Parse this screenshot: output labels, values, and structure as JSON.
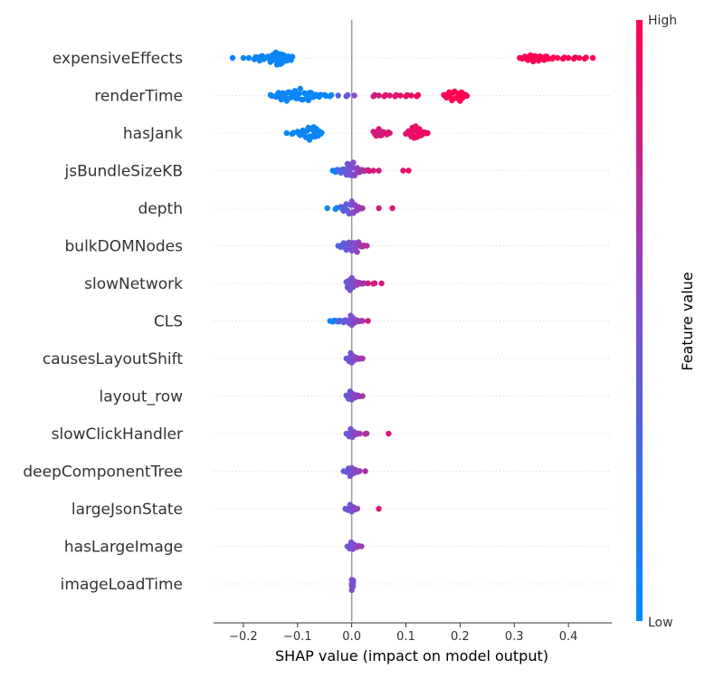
{
  "chart_data": {
    "type": "scatter",
    "subtype": "shap-beeswarm",
    "title": "",
    "xlabel": "SHAP value (impact on model output)",
    "ylabel": "",
    "xlim": [
      -0.255,
      0.48
    ],
    "xticks": [
      -0.2,
      -0.1,
      0.0,
      0.1,
      0.2,
      0.3,
      0.4
    ],
    "xtick_labels": [
      "−0.2",
      "−0.1",
      "0.0",
      "0.1",
      "0.2",
      "0.3",
      "0.4"
    ],
    "zero_line": 0.0,
    "grid": "dotted horizontal guide per feature",
    "colorbar": {
      "title": "Feature value",
      "high_label": "High",
      "low_label": "Low",
      "low_color": "#008bfb",
      "mid_color": "#7b4fd0",
      "high_color": "#ff0052"
    },
    "features": [
      {
        "name": "expensiveEffects",
        "points": [
          [
            -0.22,
            0
          ],
          [
            -0.2,
            0
          ],
          [
            -0.19,
            0
          ],
          [
            -0.18,
            0.1
          ],
          [
            -0.175,
            0.05
          ],
          [
            -0.17,
            0.2
          ],
          [
            -0.165,
            0.15
          ],
          [
            -0.16,
            0
          ],
          [
            -0.155,
            0.1
          ],
          [
            -0.15,
            0.3
          ],
          [
            -0.145,
            0.25
          ],
          [
            -0.14,
            0
          ],
          [
            -0.14,
            0.4
          ],
          [
            -0.138,
            0.5
          ],
          [
            -0.135,
            0.2
          ],
          [
            -0.132,
            0.45
          ],
          [
            -0.13,
            0.1
          ],
          [
            -0.128,
            0.35
          ],
          [
            -0.125,
            0
          ],
          [
            -0.12,
            0.2
          ],
          [
            -0.115,
            0.05
          ],
          [
            -0.112,
            0.15
          ],
          [
            0.31,
            0
          ],
          [
            0.315,
            0.05
          ],
          [
            0.32,
            0.1
          ],
          [
            0.325,
            0.15
          ],
          [
            0.33,
            0.2
          ],
          [
            0.335,
            0.25
          ],
          [
            0.34,
            0.1
          ],
          [
            0.345,
            0.2
          ],
          [
            0.35,
            0.05
          ],
          [
            0.355,
            0.15
          ],
          [
            0.36,
            0.1
          ],
          [
            0.37,
            0.05
          ],
          [
            0.38,
            0
          ],
          [
            0.39,
            0.05
          ],
          [
            0.4,
            0
          ],
          [
            0.41,
            0.05
          ],
          [
            0.42,
            0
          ],
          [
            0.43,
            0.05
          ],
          [
            0.445,
            0
          ]
        ]
      },
      {
        "name": "renderTime",
        "points": [
          [
            -0.15,
            0.05
          ],
          [
            -0.14,
            0.1
          ],
          [
            -0.135,
            0.2
          ],
          [
            -0.13,
            0.3
          ],
          [
            -0.125,
            0.15
          ],
          [
            -0.12,
            0.4
          ],
          [
            -0.115,
            0.25
          ],
          [
            -0.11,
            0.1
          ],
          [
            -0.105,
            0.35
          ],
          [
            -0.1,
            0.2
          ],
          [
            -0.095,
            0.5
          ],
          [
            -0.09,
            0.3
          ],
          [
            -0.085,
            0.15
          ],
          [
            -0.08,
            0.35
          ],
          [
            -0.075,
            0.2
          ],
          [
            -0.07,
            0.1
          ],
          [
            -0.065,
            0.05
          ],
          [
            -0.06,
            0.1
          ],
          [
            -0.05,
            0.05
          ],
          [
            -0.04,
            0.05
          ],
          [
            -0.025,
            0
          ],
          [
            -0.01,
            0.05
          ],
          [
            0.005,
            0
          ],
          [
            0.04,
            0.05
          ],
          [
            0.05,
            0
          ],
          [
            0.06,
            0.05
          ],
          [
            0.07,
            0
          ],
          [
            0.08,
            0.05
          ],
          [
            0.09,
            0
          ],
          [
            0.1,
            0.05
          ],
          [
            0.11,
            0
          ],
          [
            0.12,
            0.05
          ],
          [
            0.17,
            0.05
          ],
          [
            0.175,
            0.15
          ],
          [
            0.18,
            0.25
          ],
          [
            0.185,
            0.35
          ],
          [
            0.19,
            0.3
          ],
          [
            0.195,
            0.2
          ],
          [
            0.2,
            0.1
          ],
          [
            0.205,
            0.15
          ],
          [
            0.21,
            0.05
          ],
          [
            0.2,
            0.4
          ]
        ]
      },
      {
        "name": "hasJank",
        "points": [
          [
            -0.12,
            0
          ],
          [
            -0.11,
            0.05
          ],
          [
            -0.1,
            0.1
          ],
          [
            -0.095,
            0.15
          ],
          [
            -0.09,
            0.2
          ],
          [
            -0.085,
            0.3
          ],
          [
            -0.08,
            0.4
          ],
          [
            -0.078,
            0.5
          ],
          [
            -0.075,
            0.35
          ],
          [
            -0.072,
            0.25
          ],
          [
            -0.07,
            0.45
          ],
          [
            -0.068,
            0.15
          ],
          [
            -0.065,
            0.3
          ],
          [
            -0.062,
            0.2
          ],
          [
            -0.06,
            0.1
          ],
          [
            -0.058,
            0.05
          ],
          [
            0.04,
            0.1
          ],
          [
            0.045,
            0.2
          ],
          [
            0.05,
            0.3
          ],
          [
            0.055,
            0.15
          ],
          [
            0.06,
            0.05
          ],
          [
            0.065,
            0.1
          ],
          [
            0.07,
            0
          ],
          [
            0.1,
            0.05
          ],
          [
            0.105,
            0.15
          ],
          [
            0.11,
            0.25
          ],
          [
            0.112,
            0.4
          ],
          [
            0.115,
            0.35
          ],
          [
            0.118,
            0.5
          ],
          [
            0.12,
            0.2
          ],
          [
            0.125,
            0.3
          ],
          [
            0.13,
            0.1
          ],
          [
            0.135,
            0.05
          ],
          [
            0.14,
            0
          ]
        ]
      },
      {
        "name": "jsBundleSizeKB",
        "points": [
          [
            -0.035,
            0
          ],
          [
            -0.03,
            0.1
          ],
          [
            -0.025,
            0.05
          ],
          [
            -0.02,
            0.15
          ],
          [
            -0.015,
            0.1
          ],
          [
            -0.01,
            0.3
          ],
          [
            -0.008,
            0.5
          ],
          [
            -0.005,
            0.2
          ],
          [
            -0.003,
            0.45
          ],
          [
            0,
            0.35
          ],
          [
            0.003,
            0.6
          ],
          [
            0.006,
            0.25
          ],
          [
            0.01,
            0.2
          ],
          [
            0.015,
            0.1
          ],
          [
            0.02,
            0.05
          ],
          [
            0.025,
            0
          ],
          [
            0.03,
            0.05
          ],
          [
            0.04,
            0
          ],
          [
            0.05,
            0
          ],
          [
            0.095,
            0
          ],
          [
            0.105,
            0
          ]
        ]
      },
      {
        "name": "depth",
        "points": [
          [
            -0.045,
            0
          ],
          [
            -0.03,
            0.05
          ],
          [
            -0.02,
            0.1
          ],
          [
            -0.015,
            0.2
          ],
          [
            -0.01,
            0.3
          ],
          [
            -0.005,
            0.4
          ],
          [
            0,
            0.5
          ],
          [
            0.003,
            0.35
          ],
          [
            0.006,
            0.25
          ],
          [
            0.01,
            0.15
          ],
          [
            0.015,
            0.05
          ],
          [
            0.02,
            0
          ],
          [
            0.05,
            0
          ],
          [
            0.075,
            0
          ]
        ]
      },
      {
        "name": "bulkDOMNodes",
        "points": [
          [
            -0.025,
            0
          ],
          [
            -0.02,
            0.1
          ],
          [
            -0.015,
            0.2
          ],
          [
            -0.01,
            0.3
          ],
          [
            -0.005,
            0.25
          ],
          [
            0,
            0.35
          ],
          [
            0.005,
            0.2
          ],
          [
            0.01,
            0.45
          ],
          [
            0.015,
            0.1
          ],
          [
            0.02,
            0.05
          ],
          [
            0.028,
            0
          ]
        ]
      },
      {
        "name": "slowNetwork",
        "points": [
          [
            -0.01,
            0.1
          ],
          [
            -0.008,
            0.3
          ],
          [
            -0.005,
            0.2
          ],
          [
            -0.003,
            0.5
          ],
          [
            0,
            0.4
          ],
          [
            0.003,
            0.25
          ],
          [
            0.006,
            0.15
          ],
          [
            0.01,
            0.1
          ],
          [
            0.015,
            0.05
          ],
          [
            0.02,
            0.02
          ],
          [
            0.03,
            0
          ],
          [
            0.04,
            0.02
          ],
          [
            0.055,
            0
          ]
        ]
      },
      {
        "name": "CLS",
        "points": [
          [
            -0.04,
            0
          ],
          [
            -0.035,
            0.05
          ],
          [
            -0.03,
            0.02
          ],
          [
            -0.025,
            0.05
          ],
          [
            -0.02,
            0
          ],
          [
            -0.015,
            0.1
          ],
          [
            -0.01,
            0.05
          ],
          [
            -0.005,
            0.15
          ],
          [
            -0.002,
            0.4
          ],
          [
            0,
            0.3
          ],
          [
            0.003,
            0.2
          ],
          [
            0.006,
            0.1
          ],
          [
            0.01,
            0.05
          ],
          [
            0.015,
            0.02
          ],
          [
            0.02,
            0
          ],
          [
            0.03,
            0
          ]
        ]
      },
      {
        "name": "causesLayoutShift",
        "points": [
          [
            -0.01,
            0
          ],
          [
            -0.005,
            0.2
          ],
          [
            -0.002,
            0.4
          ],
          [
            0,
            0.3
          ],
          [
            0.003,
            0.15
          ],
          [
            0.006,
            0.1
          ],
          [
            0.01,
            0.05
          ],
          [
            0.015,
            0.02
          ],
          [
            0.02,
            0
          ]
        ]
      },
      {
        "name": "layout_row",
        "points": [
          [
            -0.01,
            0.05
          ],
          [
            -0.006,
            0.2
          ],
          [
            -0.003,
            0.35
          ],
          [
            0,
            0.25
          ],
          [
            0.003,
            0.15
          ],
          [
            0.007,
            0.1
          ],
          [
            0.012,
            0.05
          ],
          [
            0.02,
            0
          ]
        ]
      },
      {
        "name": "slowClickHandler",
        "points": [
          [
            -0.01,
            0
          ],
          [
            -0.005,
            0.2
          ],
          [
            -0.002,
            0.35
          ],
          [
            0.001,
            0.25
          ],
          [
            0.004,
            0.1
          ],
          [
            0.008,
            0.05
          ],
          [
            0.015,
            0
          ],
          [
            0.025,
            0.02
          ],
          [
            0.068,
            0
          ]
        ]
      },
      {
        "name": "deepComponentTree",
        "points": [
          [
            -0.015,
            0
          ],
          [
            -0.01,
            0.05
          ],
          [
            -0.006,
            0.2
          ],
          [
            -0.003,
            0.35
          ],
          [
            0,
            0.25
          ],
          [
            0.003,
            0.15
          ],
          [
            0.007,
            0.1
          ],
          [
            0.012,
            0.02
          ],
          [
            0.025,
            0
          ]
        ]
      },
      {
        "name": "largeJsonState",
        "points": [
          [
            -0.012,
            0
          ],
          [
            -0.007,
            0.1
          ],
          [
            -0.003,
            0.3
          ],
          [
            0,
            0.2
          ],
          [
            0.004,
            0.1
          ],
          [
            0.008,
            0.02
          ],
          [
            0.05,
            0
          ]
        ]
      },
      {
        "name": "hasLargeImage",
        "points": [
          [
            -0.008,
            0
          ],
          [
            -0.004,
            0.15
          ],
          [
            -0.001,
            0.3
          ],
          [
            0.002,
            0.2
          ],
          [
            0.005,
            0.1
          ],
          [
            0.01,
            0.05
          ],
          [
            0.018,
            0
          ]
        ]
      },
      {
        "name": "imageLoadTime",
        "points": [
          [
            0,
            0
          ],
          [
            0,
            0.15
          ],
          [
            0,
            0.3
          ],
          [
            0,
            0.45
          ]
        ]
      }
    ]
  }
}
